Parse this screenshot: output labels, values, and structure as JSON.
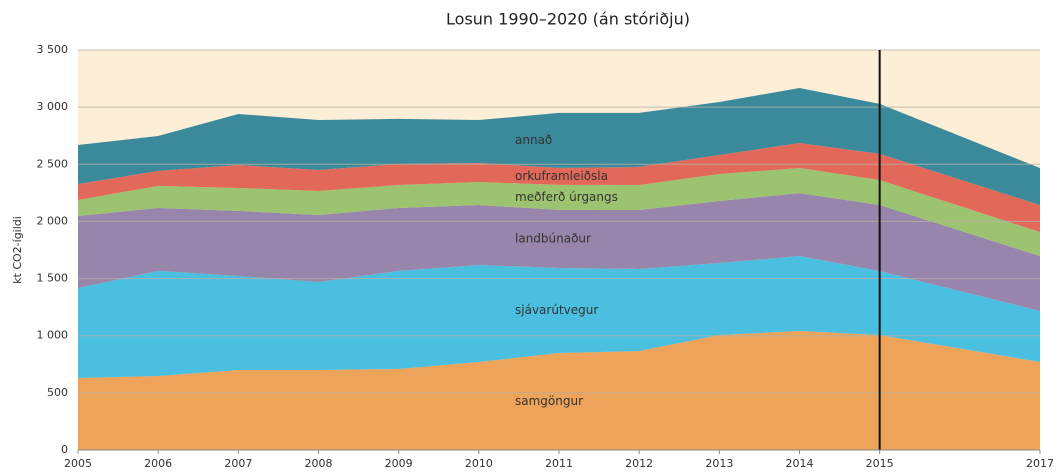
{
  "chart_data": {
    "type": "stacked_area",
    "title": "Losun 1990–2020 (án stóriðju)",
    "y_label": "kt CO2-ígildi",
    "x": [
      2005,
      2006,
      2007,
      2008,
      2009,
      2010,
      2011,
      2012,
      2013,
      2014,
      2015,
      2017
    ],
    "xlim": [
      2005,
      2017
    ],
    "xticks": [
      2005,
      2006,
      2007,
      2008,
      2009,
      2010,
      2011,
      2012,
      2013,
      2014,
      2015,
      2017
    ],
    "ylim": [
      0,
      3500
    ],
    "yticks": [
      0,
      500,
      {
        "value": 1000,
        "label": "1 000"
      },
      {
        "value": 1500,
        "label": "1 500"
      },
      {
        "value": 2000,
        "label": "2 000"
      },
      {
        "value": 2500,
        "label": "2 500"
      },
      {
        "value": 3000,
        "label": "3 000"
      },
      {
        "value": 3500,
        "label": "3 500"
      }
    ],
    "grid": true,
    "marker_x": 2015,
    "series": [
      {
        "name": "samgöngur",
        "color": "#eda35a",
        "values": [
          630,
          648,
          700,
          700,
          709,
          770,
          849,
          866,
          1006,
          1041,
          1006,
          770
        ]
      },
      {
        "name": "sjávarútvegur",
        "color": "#4bbfe0",
        "values": [
          788,
          919,
          823,
          770,
          858,
          849,
          744,
          718,
          630,
          656,
          560,
          446
        ]
      },
      {
        "name": "landbúnaður",
        "color": "#9885ac",
        "values": [
          630,
          551,
          569,
          586,
          551,
          525,
          508,
          516,
          543,
          551,
          578,
          481
        ]
      },
      {
        "name": "meðferð úrgangs",
        "color": "#9cc36f",
        "values": [
          140,
          193,
          201,
          210,
          201,
          201,
          219,
          219,
          236,
          219,
          219,
          210
        ]
      },
      {
        "name": "orkuframleiðsla",
        "color": "#e2685a",
        "values": [
          140,
          131,
          201,
          184,
          184,
          166,
          149,
          158,
          166,
          219,
          228,
          236
        ]
      },
      {
        "name": "annað",
        "color": "#3b8a9c",
        "values": [
          341,
          306,
          446,
          438,
          394,
          376,
          481,
          473,
          464,
          481,
          438,
          324
        ]
      }
    ]
  }
}
